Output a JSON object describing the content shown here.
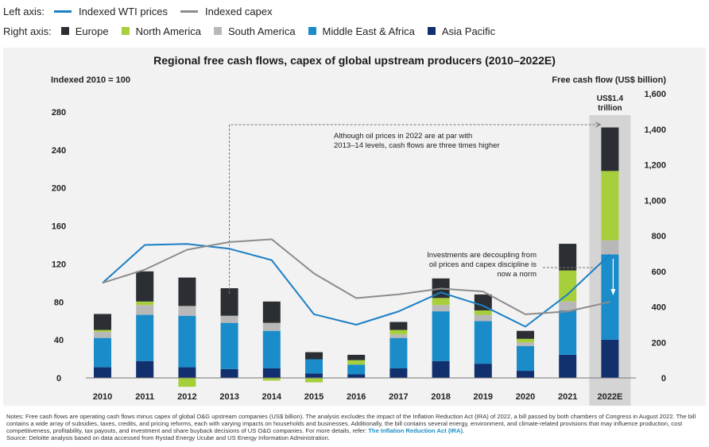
{
  "legend": {
    "left_axis_label": "Left axis:",
    "right_axis_label": "Right axis:",
    "left_items": [
      {
        "label": "Indexed WTI prices",
        "color": "#1b7fc4"
      },
      {
        "label": "Indexed capex",
        "color": "#8c8c8c"
      }
    ],
    "right_items": [
      {
        "label": "Europe",
        "color": "#2b2f33"
      },
      {
        "label": "North America",
        "color": "#a7cf3c"
      },
      {
        "label": "South America",
        "color": "#b8b8b8"
      },
      {
        "label": "Middle East & Africa",
        "color": "#1a8cc9"
      },
      {
        "label": "Asia Pacific",
        "color": "#12306e"
      }
    ]
  },
  "chart_data": {
    "type": "bar",
    "title": "Regional free cash flows, capex of global upstream producers (2010–2022E)",
    "left_axis_title": "Indexed 2010 = 100",
    "right_axis_title": "Free cash flow (US$ billion)",
    "left_ylim": [
      0,
      280
    ],
    "left_ticks": [
      "0",
      "40",
      "80",
      "120",
      "160",
      "200",
      "240",
      "280"
    ],
    "right_ylim": [
      0,
      1600
    ],
    "right_ticks": [
      "0",
      "200",
      "400",
      "600",
      "800",
      "1,000",
      "1,200",
      "1,400",
      "1,600"
    ],
    "categories": [
      "2010",
      "2011",
      "2012",
      "2013",
      "2014",
      "2015",
      "2016",
      "2017",
      "2018",
      "2019",
      "2020",
      "2021",
      "2022E"
    ],
    "highlight_category": "2022E",
    "highlight_label": "US$1.4 trillion",
    "bar_series": [
      {
        "name": "Asia Pacific",
        "color": "#12306e",
        "values": [
          60,
          95,
          60,
          50,
          55,
          25,
          20,
          55,
          95,
          80,
          40,
          130,
          215
        ]
      },
      {
        "name": "Middle East & Africa",
        "color": "#1a8cc9",
        "values": [
          165,
          260,
          290,
          260,
          210,
          80,
          55,
          170,
          280,
          240,
          140,
          250,
          480
        ]
      },
      {
        "name": "South America",
        "color": "#b8b8b8",
        "values": [
          35,
          55,
          55,
          40,
          45,
          0,
          0,
          20,
          35,
          35,
          20,
          50,
          80
        ]
      },
      {
        "name": "North America",
        "color": "#a7cf3c",
        "values": [
          10,
          20,
          -50,
          0,
          -15,
          -25,
          25,
          25,
          40,
          25,
          20,
          175,
          390
        ]
      },
      {
        "name": "Europe",
        "color": "#2b2f33",
        "values": [
          90,
          170,
          160,
          155,
          120,
          40,
          30,
          45,
          110,
          90,
          45,
          150,
          245
        ]
      }
    ],
    "line_series": [
      {
        "name": "Indexed WTI prices",
        "color": "#1b7fc4",
        "values": [
          100,
          140,
          141,
          136,
          124,
          67,
          56,
          70,
          90,
          76,
          54,
          88,
          130
        ]
      },
      {
        "name": "Indexed capex",
        "color": "#8c8c8c",
        "values": [
          100,
          114,
          135,
          143,
          146,
          110,
          84,
          88,
          94,
          91,
          67,
          70,
          80
        ]
      }
    ],
    "annotations": [
      {
        "text": [
          "Although oil prices in 2022 are at par with",
          "2013–14 levels, cash flows are three times higher"
        ]
      },
      {
        "text": [
          "Investments are decoupling from",
          "oil prices and capex discipline is",
          "now a norm"
        ]
      }
    ]
  },
  "notes": {
    "text": "Notes: Free cash flows are operating cash flows minus capex of global O&G upstream companies (US$ billion). The analysis excludes the impact of the Inflation Reduction Act (IRA) of 2022, a bill passed by both chambers of Congress in August 2022. The bill contains a wide array of subsidies, taxes, credits, and pricing reforms, each with varying impacts on households and businesses. Additionally, the bill contains several energy, environment, and climate-related provisions that may influence production, cost competitiveness, profitability, tax payouts, and investment and share buyback decisions of US O&G companies. For more details, refer:",
    "link_text": "The Inflation Reduction Act (IRA).",
    "source": "Source: Deloitte analysis based on data accessed from Rystad Energy Ucube and US Energy Information Administration."
  }
}
